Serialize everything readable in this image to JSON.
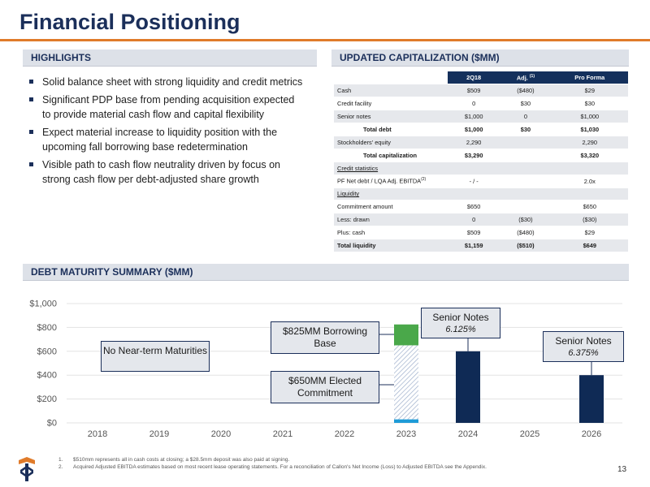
{
  "title": "Financial Positioning",
  "highlights": {
    "header": "HIGHLIGHTS",
    "bullets": [
      "Solid balance sheet with strong liquidity and credit metrics",
      "Significant PDP base from pending acquisition expected to provide material cash flow and capital flexibility",
      "Expect material increase to liquidity position with the upcoming fall borrowing base redetermination",
      "Visible path to cash flow neutrality driven by focus on strong cash flow per debt-adjusted share growth"
    ]
  },
  "capitalization": {
    "header": "UPDATED CAPITALIZATION ($MM)",
    "columns": [
      "2Q18",
      "Adj.",
      "(1)",
      "Pro Forma"
    ],
    "rows": [
      {
        "label": "Cash",
        "q": "$509",
        "adj": "($480)",
        "pf": "$29"
      },
      {
        "label": "Credit facility",
        "q": "0",
        "adj": "$30",
        "pf": "$30"
      },
      {
        "label": "Senior notes",
        "q": "$1,000",
        "adj": "0",
        "pf": "$1,000"
      },
      {
        "label": "Total debt",
        "q": "$1,000",
        "adj": "$30",
        "pf": "$1,030"
      },
      {
        "label": "Stockholders' equity",
        "q": "2,290",
        "adj": "",
        "pf": "2,290"
      },
      {
        "label": "Total capitalization",
        "q": "$3,290",
        "adj": "",
        "pf": "$3,320"
      },
      {
        "label": "Credit statistics",
        "q": "",
        "adj": "",
        "pf": ""
      },
      {
        "label": "PF Net debt / LQA Adj. EBITDA",
        "sup": "(2)",
        "q": "- / -",
        "adj": "",
        "pf": "2.0x"
      },
      {
        "label": "Liquidity",
        "q": "",
        "adj": "",
        "pf": ""
      },
      {
        "label": "Commitment amount",
        "q": "$650",
        "adj": "",
        "pf": "$650"
      },
      {
        "label": "Less: drawn",
        "q": "0",
        "adj": "($30)",
        "pf": "($30)"
      },
      {
        "label": "Plus: cash",
        "q": "$509",
        "adj": "($480)",
        "pf": "$29"
      },
      {
        "label": "Total liquidity",
        "q": "$1,159",
        "adj": "($510)",
        "pf": "$649"
      }
    ]
  },
  "debt": {
    "header": "DEBT MATURITY SUMMARY ($MM)",
    "callouts": {
      "near_term": "No Near-term Maturities",
      "borrowing_base": "$825MM Borrowing Base",
      "elected": "$650MM Elected Commitment",
      "notes_2024_title": "Senior Notes",
      "notes_2024_rate": "6.125%",
      "notes_2026_title": "Senior Notes",
      "notes_2026_rate": "6.375%"
    }
  },
  "chart_data": {
    "type": "bar",
    "categories": [
      "2018",
      "2019",
      "2020",
      "2021",
      "2022",
      "2023",
      "2024",
      "2025",
      "2026"
    ],
    "ylim": [
      0,
      1000
    ],
    "yticks": [
      0,
      200,
      400,
      600,
      800,
      1000
    ],
    "ytick_labels": [
      "$0",
      "$200",
      "$400",
      "$600",
      "$800",
      "$1,000"
    ],
    "series": [
      {
        "values": [
          0,
          0,
          0,
          0,
          0,
          30,
          0,
          0,
          0
        ],
        "color": "#1e9bd7"
      },
      {
        "values": [
          0,
          0,
          0,
          0,
          0,
          620,
          0,
          0,
          0
        ],
        "color": "#c5cfe0",
        "pattern": "hatch"
      },
      {
        "values": [
          0,
          0,
          0,
          0,
          0,
          175,
          0,
          0,
          0
        ],
        "color": "#4aa84a"
      },
      {
        "values": [
          0,
          0,
          0,
          0,
          0,
          0,
          600,
          0,
          400
        ],
        "color": "#0f2a55"
      }
    ]
  },
  "footnotes": [
    {
      "n": "1.",
      "text": "$510mm represents all in cash costs at closing; a $28.5mm deposit was also paid at signing."
    },
    {
      "n": "2.",
      "text": "Acquired Adjusted EBITDA estimates based on most recent lease operating statements. For a reconciliation of Callon's Net Income (Loss) to Adjusted EBITDA see the Appendix."
    }
  ],
  "page_number": "13",
  "colors": {
    "navy": "#1b2f5a",
    "orange": "#e07b2a",
    "green": "#4aa84a",
    "blue": "#1e9bd7"
  }
}
